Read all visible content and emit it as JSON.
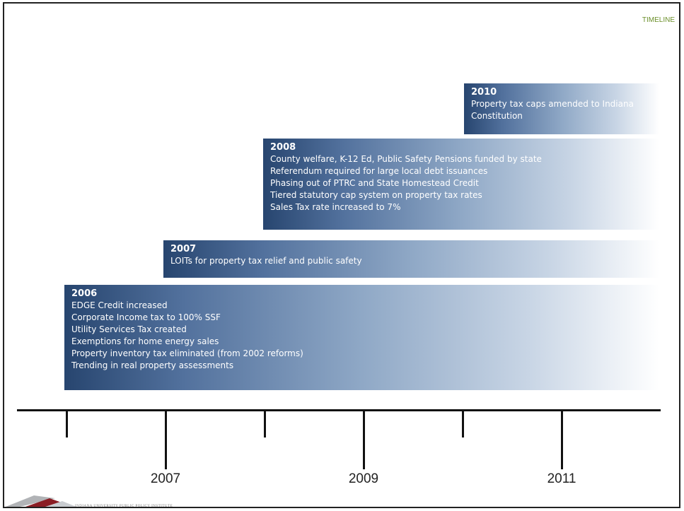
{
  "header": {
    "label": "TIMELINE"
  },
  "bands": [
    {
      "year": "2010",
      "lines": [
        "Property tax caps amended to Indiana",
        "Constitution"
      ]
    },
    {
      "year": "2008",
      "lines": [
        "County welfare, K-12 Ed, Public Safety Pensions funded by state",
        "Referendum required for large local debt issuances",
        "Phasing out of PTRC and State Homestead Credit",
        "Tiered statutory cap system on property  tax rates",
        "Sales Tax rate increased to 7%"
      ]
    },
    {
      "year": "2007",
      "lines": [
        "LOITs for property tax relief and public safety"
      ]
    },
    {
      "year": "2006",
      "lines": [
        "EDGE Credit increased",
        "Corporate Income tax to 100% SSF",
        "Utility Services Tax created",
        "Exemptions for home energy sales",
        "Property inventory tax eliminated (from 2002 reforms)",
        "Trending in real property assessments"
      ]
    }
  ],
  "axis": {
    "labels": [
      "2007",
      "2009",
      "2011"
    ]
  },
  "colors": {
    "band_dark": "#27456f",
    "band_light": "#ffffff",
    "header_label": "#6b8f2a"
  },
  "logo": {
    "text": "INDIANA UNIVERSITY PUBLIC POLICY INSTITUTE"
  }
}
